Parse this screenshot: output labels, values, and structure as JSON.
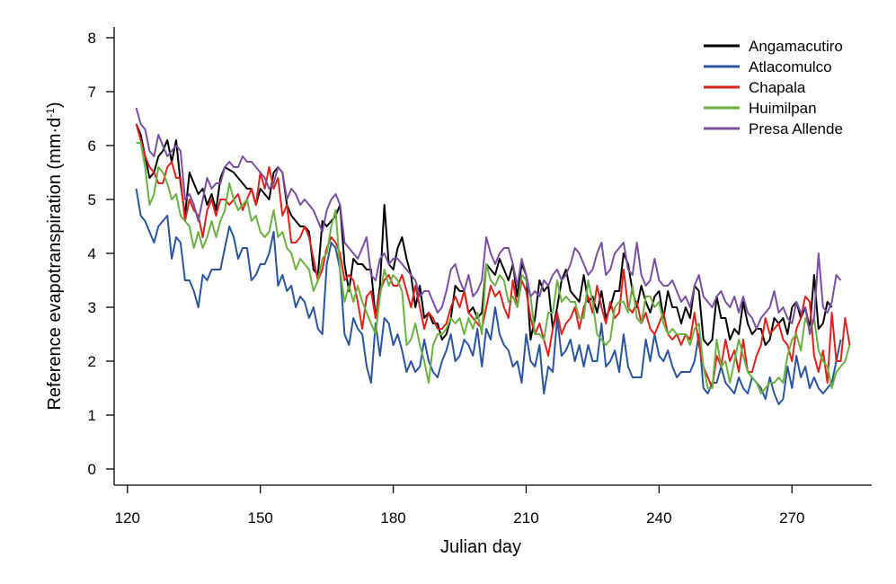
{
  "chart_data": {
    "type": "line",
    "xlabel": "Julian day",
    "ylabel_main": "Reference evapotranspiration (mm·d",
    "ylabel_sup": "-1",
    "ylabel_close": ")",
    "xlim": [
      117,
      288
    ],
    "ylim": [
      -0.3,
      8.2
    ],
    "xticks": [
      "120",
      "150",
      "180",
      "210",
      "240",
      "270"
    ],
    "yticks": [
      "0",
      "1",
      "2",
      "3",
      "4",
      "5",
      "6",
      "7",
      "8"
    ],
    "grid": false,
    "legend_position": "top-right",
    "x_start": 122,
    "series": [
      {
        "name": "Angamacutiro",
        "color": "#000000",
        "values": [
          6.4,
          6.2,
          5.8,
          5.4,
          5.5,
          5.8,
          5.9,
          6.1,
          5.7,
          6.1,
          5.3,
          4.7,
          5.5,
          5.3,
          5.1,
          5.2,
          4.9,
          5.1,
          4.8,
          5.4,
          5.6,
          5.55,
          5.5,
          5.4,
          5.3,
          5.2,
          5.2,
          4.9,
          5.2,
          5.1,
          5.0,
          5.5,
          5.6,
          5.5,
          4.9,
          4.7,
          4.6,
          4.5,
          4.5,
          4.4,
          3.7,
          3.6,
          4.6,
          4.5,
          4.6,
          4.7,
          4.9,
          3.8,
          3.3,
          3.9,
          3.8,
          3.8,
          3.7,
          3.7,
          2.8,
          3.4,
          4.9,
          3.8,
          3.7,
          4.1,
          4.3,
          3.9,
          3.6,
          3.0,
          3.4,
          2.8,
          2.9,
          2.7,
          2.7,
          2.4,
          2.5,
          2.8,
          3.4,
          3.3,
          3.3,
          2.9,
          3.0,
          2.8,
          2.9,
          3.8,
          3.7,
          3.6,
          3.9,
          3.7,
          3.5,
          3.8,
          3.2,
          3.8,
          3.6,
          2.4,
          2.8,
          3.5,
          3.3,
          3.4,
          2.6,
          3.0,
          3.5,
          3.7,
          3.3,
          3.2,
          3.1,
          3.6,
          3.1,
          3.2,
          2.9,
          3.3,
          2.8,
          3.0,
          3.3,
          3.3,
          4.0,
          3.8,
          3.3,
          3.0,
          3.4,
          3.1,
          2.9,
          3.2,
          3.3,
          2.8,
          3.3,
          3.0,
          3.0,
          2.7,
          3.0,
          2.8,
          3.4,
          3.3,
          2.4,
          2.3,
          2.4,
          3.2,
          2.8,
          2.8,
          2.4,
          2.6,
          2.5,
          3.1,
          2.7,
          2.5,
          2.6,
          2.6,
          2.3,
          2.4,
          2.8,
          2.7,
          2.8,
          2.5,
          3.0,
          3.1,
          2.8,
          3.0,
          2.6,
          3.6,
          2.6,
          2.7,
          3.1,
          3.0
        ]
      },
      {
        "name": "Atlacomulco",
        "color": "#2a54a0",
        "values": [
          5.2,
          4.7,
          4.6,
          4.4,
          4.2,
          4.5,
          4.6,
          4.7,
          3.9,
          4.3,
          4.2,
          3.5,
          3.5,
          3.3,
          3.0,
          3.6,
          3.5,
          3.7,
          3.7,
          3.7,
          4.1,
          4.5,
          4.3,
          3.9,
          4.1,
          4.1,
          3.5,
          3.6,
          3.8,
          3.8,
          4.0,
          4.4,
          3.4,
          3.6,
          3.3,
          3.4,
          3.0,
          3.2,
          3.1,
          2.8,
          3.0,
          2.6,
          2.5,
          3.8,
          4.2,
          4.1,
          3.7,
          2.5,
          2.3,
          2.8,
          2.6,
          2.5,
          1.9,
          1.6,
          2.7,
          2.1,
          2.8,
          2.7,
          2.3,
          2.5,
          2.2,
          1.8,
          2.0,
          1.8,
          1.9,
          2.4,
          2.0,
          1.8,
          1.7,
          2.0,
          2.2,
          2.5,
          2.0,
          2.1,
          2.4,
          2.3,
          2.1,
          2.6,
          1.9,
          2.6,
          2.4,
          3.0,
          2.5,
          2.3,
          2.2,
          1.9,
          2.0,
          1.6,
          2.5,
          2.0,
          1.9,
          2.3,
          1.4,
          1.9,
          1.8,
          2.8,
          2.1,
          2.2,
          2.4,
          2.0,
          2.3,
          1.9,
          2.3,
          2.0,
          2.0,
          2.7,
          1.9,
          2.0,
          2.2,
          1.8,
          2.5,
          1.9,
          1.7,
          1.7,
          1.7,
          2.4,
          2.0,
          2.5,
          2.1,
          2.0,
          2.2,
          1.9,
          1.7,
          1.8,
          1.8,
          1.8,
          2.0,
          2.5,
          1.5,
          1.4,
          1.6,
          1.6,
          1.9,
          1.6,
          1.5,
          1.4,
          1.7,
          1.5,
          1.4,
          1.7,
          1.6,
          1.5,
          1.3,
          1.7,
          1.4,
          1.2,
          1.3,
          1.9,
          1.5,
          2.1,
          1.7,
          1.9,
          1.5,
          1.7,
          1.5,
          1.4,
          1.5,
          1.6,
          2.0,
          2.4
        ]
      },
      {
        "name": "Chapala",
        "color": "#e0201b",
        "values": [
          6.4,
          6.1,
          5.8,
          5.6,
          5.5,
          5.3,
          5.3,
          5.6,
          5.7,
          5.4,
          5.4,
          4.6,
          5.0,
          4.8,
          4.7,
          4.3,
          4.8,
          5.0,
          4.7,
          5.0,
          5.0,
          4.9,
          5.0,
          5.1,
          4.8,
          5.0,
          5.2,
          4.9,
          5.5,
          5.2,
          5.6,
          5.2,
          5.4,
          4.7,
          4.9,
          4.2,
          4.2,
          4.3,
          4.5,
          4.3,
          3.9,
          3.5,
          3.7,
          4.1,
          4.3,
          4.2,
          4.0,
          3.5,
          3.6,
          3.5,
          3.1,
          2.6,
          3.2,
          3.3,
          2.8,
          3.3,
          3.5,
          3.6,
          3.4,
          3.4,
          3.6,
          3.3,
          3.0,
          3.4,
          3.0,
          2.6,
          2.9,
          2.8,
          2.6,
          2.6,
          2.7,
          3.0,
          3.2,
          3.0,
          3.3,
          2.9,
          2.8,
          2.7,
          2.6,
          3.0,
          3.4,
          3.2,
          3.3,
          3.0,
          2.8,
          3.5,
          3.0,
          3.5,
          3.3,
          2.8,
          2.5,
          2.7,
          2.4,
          2.1,
          2.6,
          2.9,
          2.5,
          2.7,
          2.8,
          3.0,
          2.6,
          3.0,
          3.2,
          2.9,
          3.4,
          3.0,
          2.7,
          3.1,
          2.8,
          2.9,
          3.7,
          3.0,
          2.9,
          3.1,
          2.7,
          2.9,
          2.6,
          2.5,
          2.7,
          2.9,
          2.5,
          2.4,
          2.5,
          2.3,
          2.5,
          2.4,
          2.9,
          2.3,
          1.9,
          1.7,
          1.5,
          2.1,
          1.9,
          2.4,
          2.0,
          2.2,
          1.8,
          2.4,
          1.8,
          1.8,
          2.1,
          2.3,
          2.8,
          2.5,
          2.6,
          2.7,
          2.4,
          2.3,
          2.0,
          2.6,
          2.8,
          3.2,
          3.1,
          2.1,
          1.8,
          2.2,
          1.6,
          2.9,
          2.0,
          2.0,
          2.8,
          2.3
        ]
      },
      {
        "name": "Huimilpan",
        "color": "#6ab23f",
        "values": [
          6.05,
          6.05,
          5.6,
          4.9,
          5.1,
          5.6,
          5.5,
          5.3,
          5.0,
          5.1,
          4.7,
          4.6,
          4.5,
          4.1,
          4.4,
          4.1,
          4.3,
          4.6,
          4.3,
          4.6,
          4.8,
          5.3,
          5.0,
          4.8,
          4.9,
          5.0,
          4.6,
          4.7,
          4.4,
          4.3,
          4.4,
          4.8,
          4.3,
          4.4,
          4.1,
          4.0,
          3.7,
          3.9,
          3.8,
          3.7,
          3.3,
          3.5,
          3.9,
          4.0,
          4.5,
          4.8,
          3.7,
          3.1,
          3.4,
          3.1,
          3.4,
          3.1,
          2.9,
          2.7,
          2.5,
          3.2,
          3.7,
          3.4,
          3.6,
          3.5,
          3.3,
          2.3,
          2.4,
          2.7,
          2.3,
          2.0,
          1.6,
          2.3,
          2.5,
          2.5,
          2.6,
          2.8,
          2.7,
          2.8,
          2.5,
          2.8,
          2.6,
          2.9,
          2.5,
          3.8,
          3.5,
          3.4,
          3.6,
          3.5,
          3.1,
          3.2,
          3.0,
          3.6,
          3.5,
          3.2,
          2.5,
          2.5,
          2.4,
          2.9,
          2.9,
          3.5,
          3.1,
          3.2,
          3.1,
          3.1,
          2.8,
          2.8,
          3.5,
          3.1,
          2.5,
          2.4,
          2.3,
          2.4,
          3.0,
          3.1,
          3.1,
          2.9,
          3.4,
          2.8,
          2.7,
          3.2,
          3.2,
          3.0,
          3.1,
          2.7,
          2.5,
          2.6,
          2.5,
          2.5,
          2.5,
          2.3,
          2.6,
          2.7,
          1.9,
          1.5,
          1.5,
          2.4,
          1.9,
          2.0,
          1.6,
          2.0,
          2.4,
          2.1,
          1.8,
          1.7,
          1.6,
          1.4,
          1.5,
          1.6,
          1.6,
          1.7,
          1.6,
          2.1,
          2.4,
          2.5,
          2.2,
          2.8,
          2.6,
          2.8,
          2.2,
          2.0,
          1.9,
          1.5,
          1.8,
          1.9,
          2.0,
          2.3
        ]
      },
      {
        "name": "Presa Allende",
        "color": "#7a4fa3",
        "values": [
          6.7,
          6.4,
          6.3,
          5.9,
          5.8,
          6.2,
          6.0,
          5.8,
          5.9,
          6.0,
          5.9,
          5.0,
          5.1,
          4.9,
          4.6,
          5.0,
          5.4,
          5.2,
          5.3,
          5.3,
          5.6,
          5.7,
          5.6,
          5.6,
          5.8,
          5.7,
          5.7,
          5.6,
          5.5,
          5.4,
          5.2,
          5.3,
          5.6,
          5.5,
          5.0,
          5.2,
          5.1,
          4.9,
          5.0,
          4.9,
          4.8,
          4.6,
          4.4,
          4.8,
          5.0,
          5.1,
          4.9,
          4.2,
          4.1,
          4.0,
          3.9,
          4.1,
          4.3,
          3.6,
          3.5,
          3.9,
          4.0,
          3.8,
          3.9,
          3.9,
          3.8,
          3.7,
          3.6,
          3.5,
          3.2,
          3.3,
          3.3,
          3.1,
          2.9,
          3.0,
          3.3,
          3.7,
          3.8,
          3.5,
          3.3,
          3.6,
          3.2,
          3.3,
          3.5,
          4.3,
          4.0,
          3.8,
          4.0,
          4.1,
          4.1,
          3.8,
          3.4,
          3.9,
          3.6,
          3.2,
          3.3,
          3.2,
          3.5,
          3.4,
          3.6,
          3.7,
          3.5,
          3.6,
          3.8,
          4.1,
          4.0,
          3.8,
          3.6,
          3.7,
          4.0,
          4.2,
          3.6,
          3.7,
          4.0,
          4.1,
          4.2,
          3.7,
          3.6,
          4.2,
          3.6,
          3.4,
          3.5,
          3.9,
          3.5,
          3.4,
          3.4,
          3.5,
          3.3,
          3.1,
          3.2,
          3.0,
          3.4,
          3.6,
          3.2,
          3.1,
          3.0,
          3.2,
          3.3,
          3.1,
          3.0,
          3.2,
          2.9,
          3.2,
          2.9,
          2.8,
          2.6,
          2.8,
          2.9,
          3.0,
          3.3,
          2.9,
          3.0,
          2.8,
          2.7,
          3.1,
          2.9,
          3.0,
          2.5,
          2.8,
          4.0,
          3.0,
          2.9,
          3.1,
          3.6,
          3.5
        ]
      }
    ]
  }
}
